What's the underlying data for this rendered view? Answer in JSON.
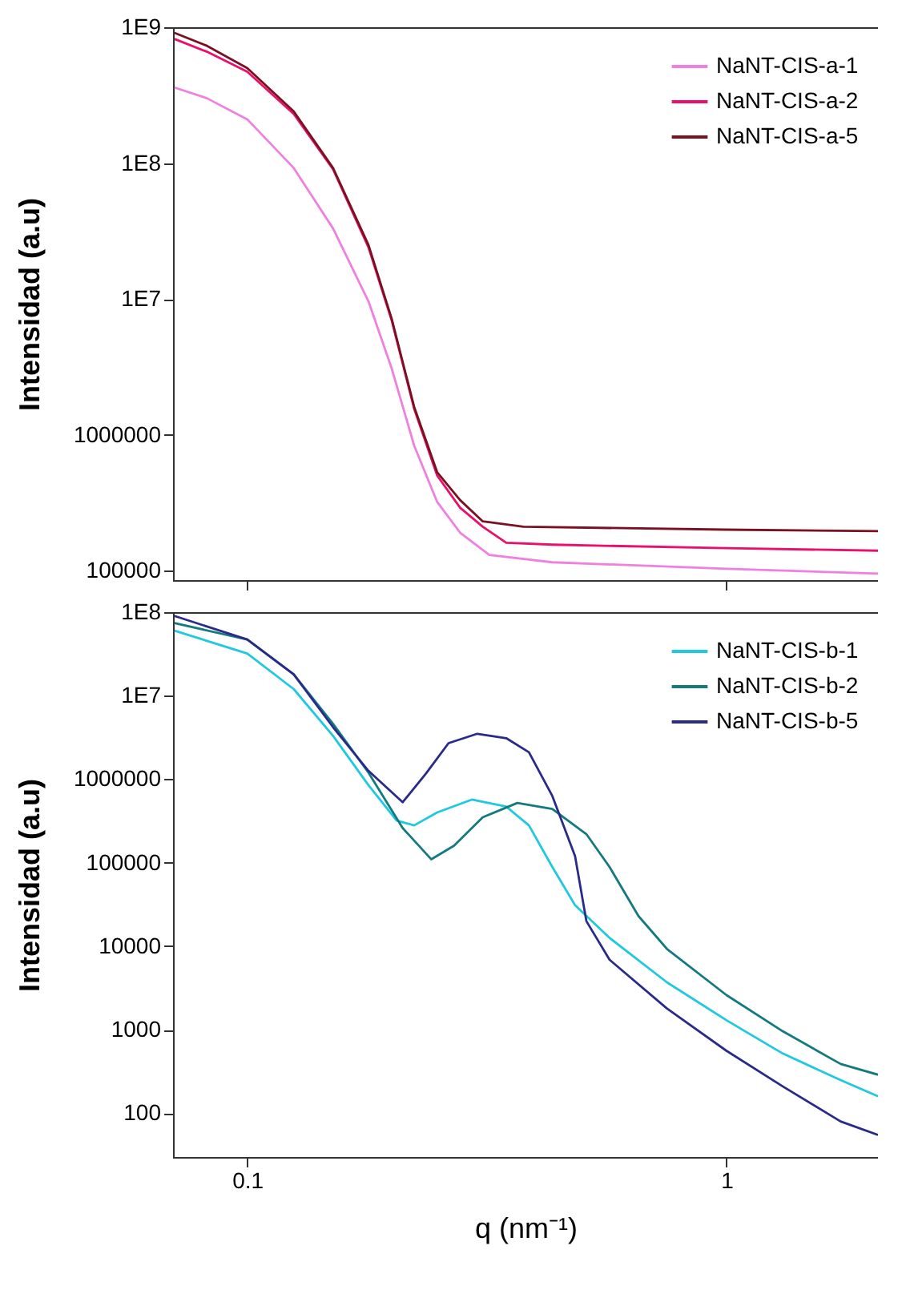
{
  "chart_data": [
    {
      "type": "line",
      "ylabel": "Intensidad (a.u)",
      "log": "xy",
      "grid": false,
      "legend": "top right",
      "tick_labels": "y",
      "line_style": "solid",
      "marker": "none",
      "xlim": [
        0.07,
        2.07
      ],
      "xticks": [
        {
          "value": 0.1,
          "label": null
        },
        {
          "value": 1,
          "label": null
        }
      ],
      "ylim": [
        85000,
        1000000000
      ],
      "yticks": [
        {
          "value": 100000,
          "label": "100000"
        },
        {
          "value": 1000000,
          "label": "1000000"
        },
        {
          "value": 10000000,
          "label": "1E7"
        },
        {
          "value": 100000000,
          "label": "1E8"
        },
        {
          "value": 1000000000,
          "label": "1E9"
        }
      ],
      "series": [
        {
          "name": "NaNT-CIS-a-1",
          "color": "#f080e0",
          "x": [
            0.0705,
            0.0824,
            0.1,
            0.125,
            0.151,
            0.179,
            0.2,
            0.223,
            0.249,
            0.278,
            0.32,
            0.433,
            1.0,
            2.07
          ],
          "values": [
            360000000,
            300000000,
            210000000,
            92000000,
            33000000,
            9600000,
            3100000,
            830000,
            320000,
            190000,
            130000,
            115000,
            103000,
            95000
          ]
        },
        {
          "name": "NaNT-CIS-a-2",
          "color": "#e8106a",
          "x": [
            0.0705,
            0.0824,
            0.1,
            0.125,
            0.151,
            0.179,
            0.2,
            0.223,
            0.249,
            0.278,
            0.31,
            0.347,
            0.433,
            1.0,
            2.07
          ],
          "values": [
            820000000,
            660000000,
            470000000,
            230000000,
            90000000,
            24000000,
            7000000,
            1550000,
            500000,
            290000,
            210000,
            160000,
            155000,
            146000,
            140000
          ]
        },
        {
          "name": "NaNT-CIS-a-5",
          "color": "#7a1020",
          "x": [
            0.0705,
            0.0824,
            0.1,
            0.125,
            0.151,
            0.179,
            0.2,
            0.223,
            0.249,
            0.278,
            0.31,
            0.377,
            0.99,
            2.07
          ],
          "values": [
            910000000,
            730000000,
            500000000,
            240000000,
            92000000,
            25000000,
            7200000,
            1600000,
            530000,
            330000,
            230000,
            210000,
            200000,
            195000
          ]
        }
      ]
    },
    {
      "type": "line",
      "xlabel": "q (nm⁻¹)",
      "ylabel": "Intensidad (a.u)",
      "log": "xy",
      "grid": false,
      "legend": "top right",
      "line_style": "solid",
      "marker": "none",
      "xlim": [
        0.07,
        2.07
      ],
      "xticks": [
        0.1,
        1
      ],
      "ylim": [
        30,
        100000000
      ],
      "yticks": [
        100,
        1000,
        10000,
        100000,
        1000000,
        {
          "value": 10000000,
          "label": "1E7"
        },
        {
          "value": 100000000,
          "label": "1E8"
        }
      ],
      "series": [
        {
          "name": "NaNT-CIS-b-1",
          "color": "#20c8e0",
          "x": [
            0.0705,
            0.1,
            0.125,
            0.151,
            0.179,
            0.205,
            0.223,
            0.249,
            0.294,
            0.347,
            0.387,
            0.433,
            0.483,
            0.57,
            0.751,
            1.0,
            1.31,
            1.73,
            2.07
          ],
          "values": [
            60000000,
            32000000,
            12000000,
            3300000,
            850000,
            320000,
            280000,
            400000,
            570000,
            470000,
            280000,
            89000,
            31000,
            12600,
            3700,
            1300,
            520,
            250,
            160
          ]
        },
        {
          "name": "NaNT-CIS-b-2",
          "color": "#137a80",
          "x": [
            0.0705,
            0.1,
            0.125,
            0.151,
            0.179,
            0.211,
            0.242,
            0.27,
            0.31,
            0.366,
            0.433,
            0.51,
            0.57,
            0.655,
            0.751,
            1.0,
            1.31,
            1.73,
            2.07
          ],
          "values": [
            74000000,
            47000000,
            18000000,
            4600000,
            1200000,
            260000,
            110000,
            160000,
            350000,
            520000,
            440000,
            220000,
            89000,
            23000,
            9300,
            2600,
            960,
            390,
            290
          ]
        },
        {
          "name": "NaNT-CIS-b-5",
          "color": "#2a2a8a",
          "x": [
            0.0705,
            0.1,
            0.125,
            0.151,
            0.179,
            0.211,
            0.236,
            0.263,
            0.302,
            0.347,
            0.387,
            0.433,
            0.483,
            0.51,
            0.57,
            0.751,
            1.0,
            1.31,
            1.73,
            2.07
          ],
          "values": [
            90000000,
            47000000,
            18000000,
            4200000,
            1260000,
            530000,
            1170000,
            2700000,
            3500000,
            3100000,
            2100000,
            630000,
            120000,
            20000,
            6900,
            1800,
            560,
            210,
            80,
            55
          ]
        }
      ]
    }
  ]
}
